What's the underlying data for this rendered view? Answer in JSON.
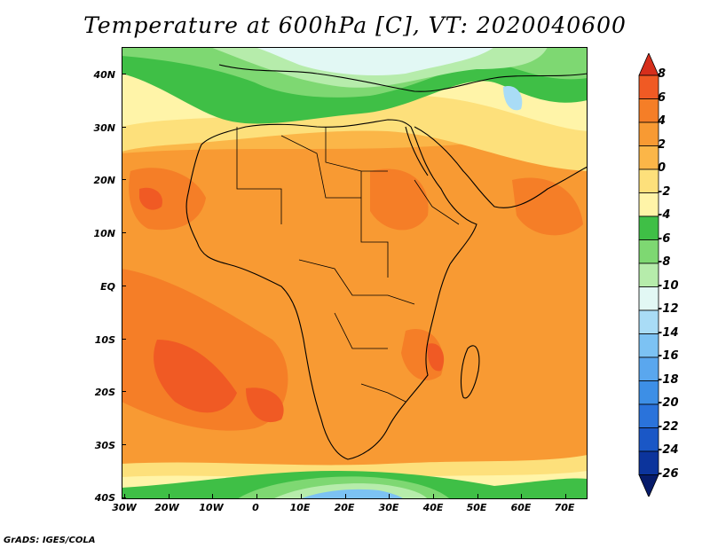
{
  "title": "Temperature at 600hPa [C], VT: 2020040600",
  "credit": "GrADS: IGES/COLA",
  "y_axis_labels": [
    "40N",
    "30N",
    "20N",
    "10N",
    "EQ",
    "10S",
    "20S",
    "30S",
    "40S"
  ],
  "x_axis_labels": [
    "30W",
    "20W",
    "10W",
    "0",
    "10E",
    "20E",
    "30E",
    "40E",
    "50E",
    "60E",
    "70E"
  ],
  "colorbar": {
    "labels": [
      "8",
      "6",
      "4",
      "2",
      "0",
      "-2",
      "-4",
      "-6",
      "-8",
      "-10",
      "-12",
      "-14",
      "-16",
      "-18",
      "-20",
      "-22",
      "-24",
      "-26"
    ],
    "colors": [
      "#d62f1c",
      "#f05a24",
      "#f57e27",
      "#f89a33",
      "#fbb648",
      "#fde07b",
      "#fff4a8",
      "#3fbf46",
      "#7ed872",
      "#b6ecab",
      "#e2f8f4",
      "#a9dcf6",
      "#7cc2f3",
      "#5aa7ee",
      "#3d8fe6",
      "#2a73db",
      "#1a57c6",
      "#0c349c",
      "#061b6a"
    ]
  }
}
